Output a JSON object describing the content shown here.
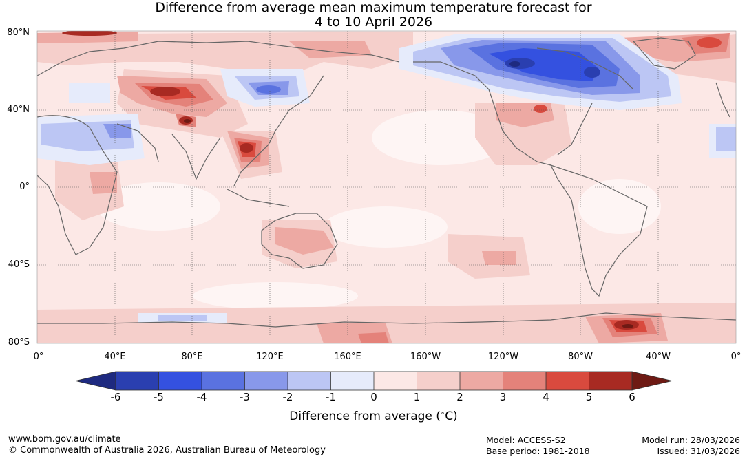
{
  "title": {
    "line1": "Difference from average mean maximum temperature forecast for",
    "line2": "4 to 10 April 2026"
  },
  "axes": {
    "lat_labels": [
      "80°N",
      "40°N",
      "0°",
      "40°S",
      "80°S"
    ],
    "lon_labels": [
      "0°",
      "40°E",
      "80°E",
      "120°E",
      "160°E",
      "160°W",
      "120°W",
      "80°W",
      "40°W",
      "0°"
    ]
  },
  "colorbar": {
    "ticks": [
      "-6",
      "-5",
      "-4",
      "-3",
      "-2",
      "-1",
      "0",
      "1",
      "2",
      "3",
      "4",
      "5",
      "6"
    ],
    "colors": [
      "#1e2a80",
      "#2a3fb0",
      "#3451e0",
      "#5a72e0",
      "#8898ea",
      "#bcc6f4",
      "#e6ebfb",
      "#fce8e6",
      "#f5cfcb",
      "#eda9a3",
      "#e4827a",
      "#d94a3e",
      "#a82a22",
      "#6e1a14"
    ],
    "label": "Difference from average (",
    "label_unit": "C)"
  },
  "footer": {
    "url": "www.bom.gov.au/climate",
    "copyright": "© Commonwealth of Australia 2026, Australian Bureau of Meteorology",
    "model": "Model: ACCESS-S2",
    "base_period": "Base period: 1981-2018",
    "model_run": "Model run: 28/03/2026",
    "issued": "Issued: 31/03/2026"
  }
}
